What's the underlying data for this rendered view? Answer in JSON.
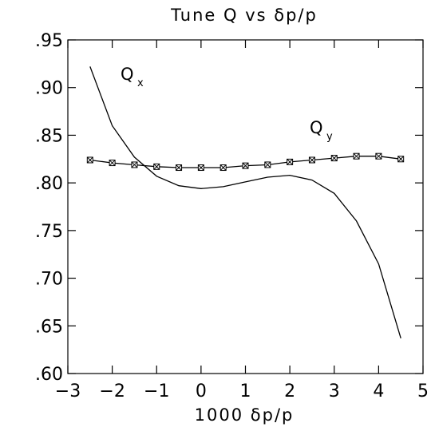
{
  "chart_data": {
    "type": "line",
    "title": "Tune Q vs δp/p",
    "xlabel": "1000 δp/p",
    "ylabel": "",
    "xlim": [
      -3,
      5
    ],
    "ylim": [
      0.6,
      0.95
    ],
    "xticks": [
      -3,
      -2,
      -1,
      0,
      1,
      2,
      3,
      4,
      5
    ],
    "xtick_labels": [
      "−3",
      "−2",
      "−1",
      "0",
      "1",
      "2",
      "3",
      "4",
      "5"
    ],
    "yticks": [
      0.6,
      0.65,
      0.7,
      0.75,
      0.8,
      0.85,
      0.9,
      0.95
    ],
    "ytick_labels": [
      ".60",
      ".65",
      ".70",
      ".75",
      ".80",
      ".85",
      ".90",
      ".95"
    ],
    "grid": false,
    "series": [
      {
        "name": "Qx",
        "label_main": "Q",
        "label_sub": "x",
        "marker": "none",
        "x": [
          -2.5,
          -2.0,
          -1.5,
          -1.0,
          -0.5,
          0.0,
          0.5,
          1.0,
          1.5,
          2.0,
          2.5,
          3.0,
          3.5,
          4.0,
          4.5
        ],
        "y": [
          0.922,
          0.86,
          0.827,
          0.807,
          0.797,
          0.794,
          0.796,
          0.801,
          0.806,
          0.808,
          0.803,
          0.789,
          0.76,
          0.715,
          0.637
        ]
      },
      {
        "name": "Qy",
        "label_main": "Q",
        "label_sub": "y",
        "marker": "boxed-x",
        "x": [
          -2.5,
          -2.0,
          -1.5,
          -1.0,
          -0.5,
          0.0,
          0.5,
          1.0,
          1.5,
          2.0,
          2.5,
          3.0,
          3.5,
          4.0,
          4.5
        ],
        "y": [
          0.824,
          0.821,
          0.819,
          0.817,
          0.816,
          0.816,
          0.816,
          0.818,
          0.819,
          0.822,
          0.824,
          0.826,
          0.828,
          0.828,
          0.825
        ]
      }
    ]
  }
}
